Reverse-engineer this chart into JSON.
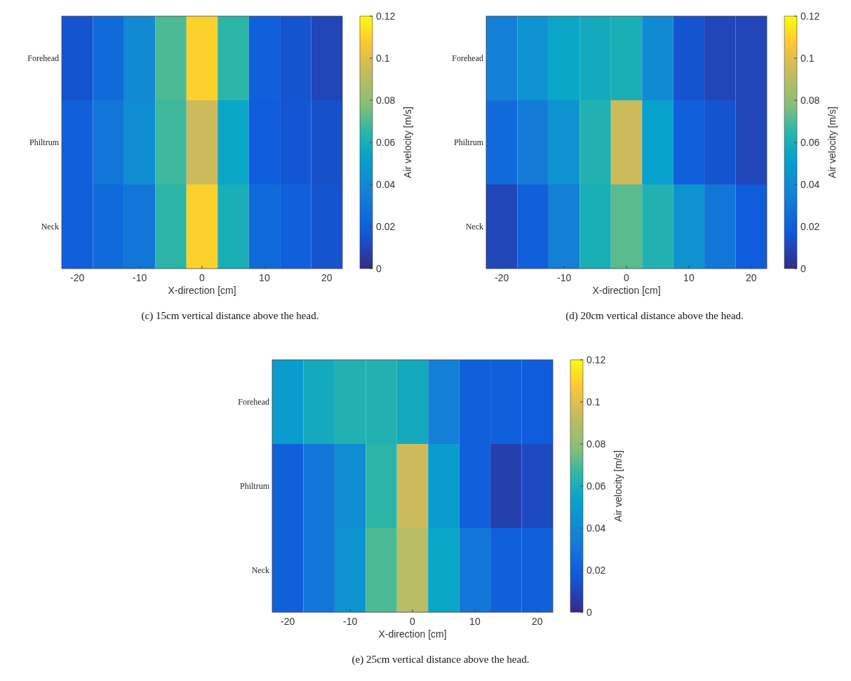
{
  "chart_data": [
    {
      "type": "heatmap",
      "xlabel": "X-direction [cm]",
      "clabel": "Air velocity [m/s]",
      "categories": [
        "-20",
        null,
        "-10",
        null,
        "0",
        null,
        "10",
        null,
        "20"
      ],
      "y_categories": [
        "Forehead",
        "Philtrum",
        "Neck"
      ],
      "cells": [
        [
          0.015,
          0.025,
          0.04,
          0.07,
          0.11,
          0.065,
          0.02,
          0.015,
          0.01
        ],
        [
          0.02,
          0.03,
          0.042,
          0.068,
          0.095,
          0.055,
          0.018,
          0.016,
          0.014
        ],
        [
          0.02,
          0.025,
          0.03,
          0.065,
          0.11,
          0.06,
          0.025,
          0.02,
          0.015
        ]
      ],
      "clim": [
        0,
        0.12
      ],
      "cticks": [
        0,
        0.02,
        0.04,
        0.06,
        0.08,
        0.1,
        0.12
      ],
      "annotations": [
        "(c) 15cm vertical distance above the head."
      ]
    },
    {
      "type": "heatmap",
      "xlabel": "X-direction [cm]",
      "clabel": "Air velocity [m/s]",
      "categories": [
        "-20",
        null,
        "-10",
        null,
        "0",
        null,
        "10",
        null,
        "20"
      ],
      "y_categories": [
        "Forehead",
        "Philtrum",
        "Neck"
      ],
      "cells": [
        [
          0.035,
          0.045,
          0.055,
          0.058,
          0.06,
          0.04,
          0.015,
          0.01,
          0.01
        ],
        [
          0.025,
          0.033,
          0.045,
          0.062,
          0.095,
          0.053,
          0.02,
          0.015,
          0.01
        ],
        [
          0.01,
          0.02,
          0.035,
          0.06,
          0.072,
          0.062,
          0.045,
          0.03,
          0.018
        ]
      ],
      "clim": [
        0,
        0.12
      ],
      "cticks": [
        0,
        0.02,
        0.04,
        0.06,
        0.08,
        0.1,
        0.12
      ],
      "annotations": [
        "(d) 20cm vertical distance above the head."
      ]
    },
    {
      "type": "heatmap",
      "xlabel": "X-direction [cm]",
      "clabel": "Air velocity [m/s]",
      "categories": [
        "-20",
        null,
        "-10",
        null,
        "0",
        null,
        "10",
        null,
        "20"
      ],
      "y_categories": [
        "Forehead",
        "Philtrum",
        "Neck"
      ],
      "cells": [
        [
          0.05,
          0.058,
          0.062,
          0.062,
          0.058,
          0.035,
          0.02,
          0.02,
          0.018
        ],
        [
          0.02,
          0.03,
          0.042,
          0.065,
          0.095,
          0.05,
          0.02,
          0.008,
          0.012
        ],
        [
          0.02,
          0.03,
          0.045,
          0.07,
          0.09,
          0.055,
          0.03,
          0.02,
          0.02
        ]
      ],
      "clim": [
        0,
        0.12
      ],
      "cticks": [
        0,
        0.02,
        0.04,
        0.06,
        0.08,
        0.1,
        0.12
      ],
      "annotations": [
        "(e) 25cm vertical distance above the head."
      ]
    }
  ]
}
